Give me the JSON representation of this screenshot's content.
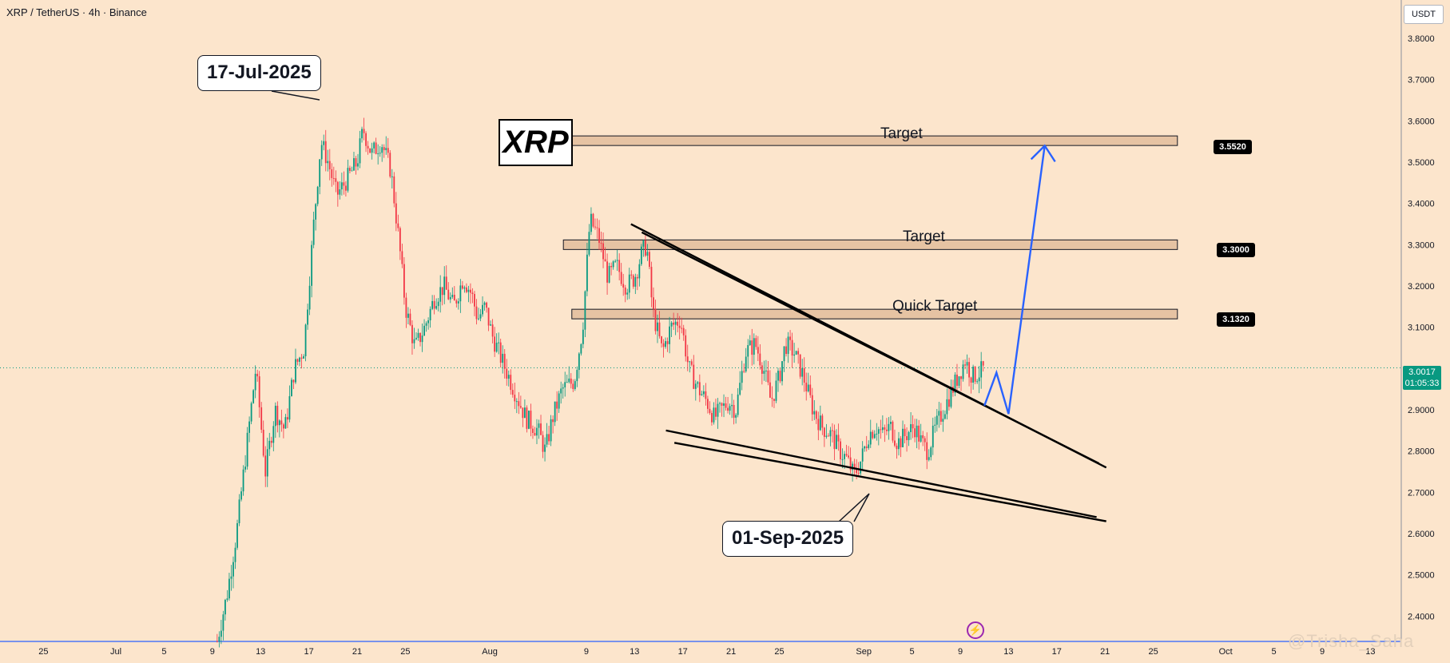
{
  "header": {
    "symbol": "XRP / TetherUS · 4h · Binance"
  },
  "currency": "USDT",
  "title_box": "XRP",
  "callouts": {
    "peak": "17-Jul-2025",
    "low": "01-Sep-2025"
  },
  "zones": [
    {
      "label": "Target",
      "value": "3.5520",
      "price": 3.552
    },
    {
      "label": "Target",
      "value": "3.3000",
      "price": 3.3
    },
    {
      "label": "Quick Target",
      "value": "3.1320",
      "price": 3.132
    }
  ],
  "price_badge": {
    "price": "3.0017",
    "countdown": "01:05:33"
  },
  "watermark": "@Trisha_Saha",
  "colors": {
    "background": "#fce5cc",
    "up": "#089981",
    "down": "#f23645",
    "zone": "#e6c3a3",
    "projection": "#2962ff"
  },
  "chart_data": {
    "type": "candlestick",
    "symbol": "XRP / TetherUS",
    "interval": "4h",
    "exchange": "Binance",
    "y_ticks": [
      "3.8000",
      "3.7000",
      "3.6000",
      "3.5000",
      "3.4000",
      "3.3000",
      "3.2000",
      "3.1000",
      "3.0000",
      "2.9000",
      "2.8000",
      "2.7000",
      "2.6000",
      "2.5000",
      "2.4000"
    ],
    "ylim": [
      2.33,
      3.86
    ],
    "x_ticks": [
      "25",
      "Jul",
      "5",
      "9",
      "13",
      "17",
      "21",
      "25",
      "Aug",
      "9",
      "13",
      "17",
      "21",
      "25",
      "Sep",
      "5",
      "9",
      "13",
      "17",
      "21",
      "25",
      "Oct",
      "5",
      "9",
      "13"
    ],
    "x_tick_days": [
      -6,
      0,
      4,
      8,
      12,
      16,
      20,
      24,
      31,
      39,
      43,
      47,
      51,
      55,
      62,
      66,
      70,
      74,
      78,
      82,
      86,
      92,
      96,
      100,
      104
    ],
    "xlim_days": [
      -10.3,
      107.1
    ],
    "date_origin": "2025-07-01",
    "current_price": 3.0017,
    "path_keypoints": [
      [
        8.4,
        2.34
      ],
      [
        9.2,
        2.45
      ],
      [
        10.0,
        2.6
      ],
      [
        10.8,
        2.8
      ],
      [
        11.6,
        3.0
      ],
      [
        12.4,
        2.75
      ],
      [
        13.2,
        2.9
      ],
      [
        14.0,
        2.85
      ],
      [
        14.8,
        3.0
      ],
      [
        15.6,
        3.05
      ],
      [
        16.4,
        3.35
      ],
      [
        17.0,
        3.55
      ],
      [
        17.6,
        3.5
      ],
      [
        18.3,
        3.42
      ],
      [
        19.0,
        3.45
      ],
      [
        20.0,
        3.5
      ],
      [
        20.5,
        3.58
      ],
      [
        21.2,
        3.52
      ],
      [
        22.0,
        3.55
      ],
      [
        22.8,
        3.48
      ],
      [
        23.5,
        3.3
      ],
      [
        24.0,
        3.15
      ],
      [
        24.8,
        3.05
      ],
      [
        25.6,
        3.1
      ],
      [
        26.4,
        3.17
      ],
      [
        27.2,
        3.2
      ],
      [
        28.0,
        3.15
      ],
      [
        28.8,
        3.22
      ],
      [
        29.5,
        3.18
      ],
      [
        30.0,
        3.12
      ],
      [
        30.6,
        3.15
      ],
      [
        31.2,
        3.08
      ],
      [
        32.0,
        3.02
      ],
      [
        33.0,
        2.95
      ],
      [
        34.0,
        2.88
      ],
      [
        35.0,
        2.85
      ],
      [
        35.6,
        2.8
      ],
      [
        36.2,
        2.88
      ],
      [
        37.0,
        2.95
      ],
      [
        38.0,
        2.97
      ],
      [
        38.7,
        3.1
      ],
      [
        39.3,
        3.36
      ],
      [
        40.0,
        3.32
      ],
      [
        40.8,
        3.22
      ],
      [
        41.5,
        3.25
      ],
      [
        42.3,
        3.2
      ],
      [
        43.0,
        3.22
      ],
      [
        43.6,
        3.28
      ],
      [
        44.0,
        3.3
      ],
      [
        44.5,
        3.14
      ],
      [
        45.3,
        3.04
      ],
      [
        46.0,
        3.1
      ],
      [
        46.8,
        3.12
      ],
      [
        47.5,
        3.0
      ],
      [
        48.3,
        2.95
      ],
      [
        49.0,
        2.92
      ],
      [
        49.6,
        2.88
      ],
      [
        50.2,
        2.9
      ],
      [
        50.8,
        2.92
      ],
      [
        51.4,
        2.9
      ],
      [
        52.2,
        3.04
      ],
      [
        53.0,
        3.06
      ],
      [
        53.7,
        3.0
      ],
      [
        54.3,
        2.92
      ],
      [
        55.0,
        2.98
      ],
      [
        55.5,
        3.06
      ],
      [
        56.2,
        3.04
      ],
      [
        57.0,
        2.98
      ],
      [
        57.8,
        2.9
      ],
      [
        58.5,
        2.86
      ],
      [
        59.3,
        2.84
      ],
      [
        60.0,
        2.8
      ],
      [
        60.6,
        2.78
      ],
      [
        61.2,
        2.74
      ],
      [
        61.8,
        2.78
      ],
      [
        62.4,
        2.84
      ],
      [
        63.0,
        2.86
      ],
      [
        63.6,
        2.84
      ],
      [
        64.2,
        2.86
      ],
      [
        64.8,
        2.82
      ],
      [
        65.5,
        2.84
      ],
      [
        66.2,
        2.86
      ],
      [
        66.8,
        2.82
      ],
      [
        67.3,
        2.8
      ],
      [
        68.0,
        2.86
      ],
      [
        68.6,
        2.9
      ],
      [
        69.2,
        2.94
      ],
      [
        69.8,
        2.98
      ],
      [
        70.4,
        3.02
      ],
      [
        71.0,
        2.98
      ],
      [
        71.6,
        2.99
      ],
      [
        72.0,
        3.0
      ]
    ],
    "annotations": {
      "peak_date": "17-Jul-2025",
      "peak_price": 3.66,
      "low_date": "01-Sep-2025",
      "low_price": 2.7,
      "projection_path": [
        [
          72.0,
          2.91
        ],
        [
          73.0,
          2.99
        ],
        [
          74.0,
          2.89
        ],
        [
          77.0,
          3.54
        ]
      ],
      "upper_trendline_1": [
        [
          42.7,
          3.35
        ],
        [
          82.1,
          2.76
        ]
      ],
      "upper_trendline_2": [
        [
          43.6,
          3.33
        ],
        [
          81.5,
          2.77
        ]
      ],
      "lower_trendline_1": [
        [
          46.3,
          2.82
        ],
        [
          82.1,
          2.63
        ]
      ],
      "lower_trendline_2": [
        [
          45.6,
          2.85
        ],
        [
          81.3,
          2.64
        ]
      ]
    },
    "zones": [
      {
        "label": "Target",
        "price": 3.552,
        "x_range": [
          36.6,
          88.0
        ]
      },
      {
        "label": "Target",
        "price": 3.3,
        "x_range": [
          37.1,
          88.0
        ]
      },
      {
        "label": "Quick Target",
        "price": 3.132,
        "x_range": [
          37.8,
          88.0
        ]
      }
    ]
  }
}
